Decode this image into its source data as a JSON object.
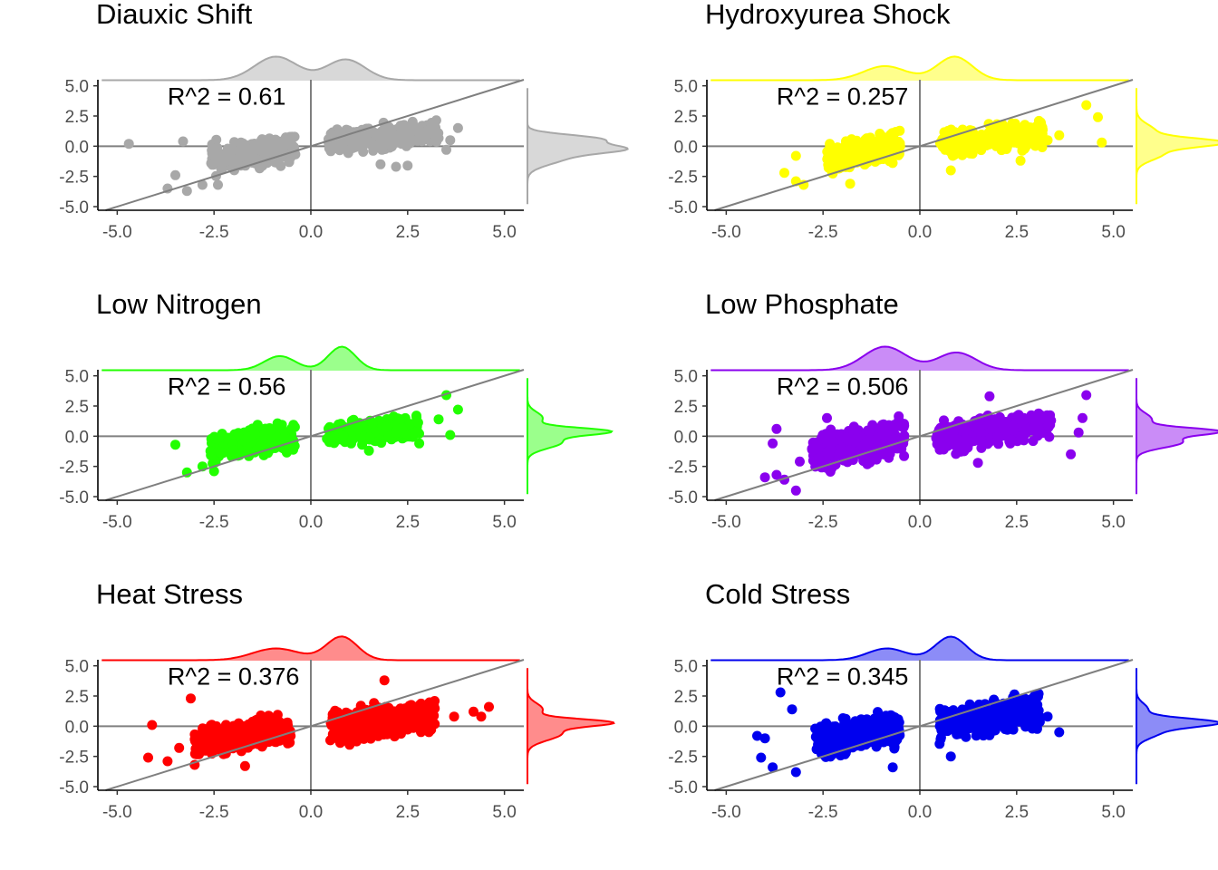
{
  "chart_data": [
    {
      "type": "scatter",
      "title": "Diauxic Shift",
      "color": "#a8a8a8",
      "annotation": "R^2 = 0.61",
      "xlim": [
        -5.5,
        5.5
      ],
      "ylim": [
        -5.3,
        5.5
      ],
      "x_ticks": [
        "-5.0",
        "-2.5",
        "0.0",
        "2.5",
        "5.0"
      ],
      "y_ticks": [
        "5.0",
        "2.5",
        "0.0",
        "-2.5",
        "-5.0"
      ],
      "reference_line_slope": 1,
      "points": {
        "neg_x": [
          -2.6,
          -0.4
        ],
        "neg_y": [
          -1.8,
          0.6
        ],
        "pos_x": [
          0.4,
          3.3
        ],
        "pos_y": [
          -0.3,
          1.8
        ],
        "n_neg": 220,
        "n_pos": 260,
        "seed": 11
      },
      "outliers": [
        [
          -4.7,
          0.2
        ],
        [
          -3.3,
          0.4
        ],
        [
          -3.7,
          -3.5
        ],
        [
          -3.2,
          -3.7
        ],
        [
          -3.5,
          -2.4
        ],
        [
          -2.8,
          -3.2
        ],
        [
          -2.4,
          -3.2
        ],
        [
          3.8,
          1.5
        ],
        [
          3.6,
          0.5
        ],
        [
          3.5,
          -0.3
        ],
        [
          2.2,
          -1.7
        ],
        [
          2.5,
          -1.6
        ],
        [
          1.8,
          -1.5
        ]
      ],
      "x_density_peaks": [
        [
          -0.9,
          0.55,
          1.0
        ],
        [
          0.9,
          0.5,
          0.88
        ]
      ],
      "y_density_peaks": [
        [
          0.6,
          0.35,
          0.9
        ],
        [
          -0.2,
          0.35,
          1.0
        ],
        [
          -0.9,
          0.6,
          0.5
        ]
      ]
    },
    {
      "type": "scatter",
      "title": "Hydroxyurea Shock",
      "color": "#ffff00",
      "annotation": "R^2 = 0.257",
      "xlim": [
        -5.5,
        5.5
      ],
      "ylim": [
        -5.3,
        5.5
      ],
      "x_ticks": [
        "-5.0",
        "-2.5",
        "0.0",
        "2.5",
        "5.0"
      ],
      "y_ticks": [
        "5.0",
        "2.5",
        "0.0",
        "-2.5",
        "-5.0"
      ],
      "reference_line_slope": 1,
      "points": {
        "neg_x": [
          -2.4,
          -0.5
        ],
        "neg_y": [
          -1.8,
          0.8
        ],
        "pos_x": [
          0.5,
          3.2
        ],
        "pos_y": [
          -0.5,
          1.8
        ],
        "n_neg": 220,
        "n_pos": 260,
        "seed": 23
      },
      "outliers": [
        [
          -3.2,
          -0.8
        ],
        [
          -3.5,
          -2.2
        ],
        [
          -3.2,
          -2.9
        ],
        [
          -3.0,
          -3.2
        ],
        [
          -1.8,
          -3.1
        ],
        [
          4.3,
          3.4
        ],
        [
          4.6,
          2.4
        ],
        [
          4.7,
          0.3
        ],
        [
          3.6,
          0.9
        ],
        [
          3.3,
          0.5
        ],
        [
          0.8,
          -2.0
        ],
        [
          2.6,
          -1.2
        ]
      ],
      "x_density_peaks": [
        [
          -0.9,
          0.55,
          0.6
        ],
        [
          0.9,
          0.45,
          1.0
        ]
      ],
      "y_density_peaks": [
        [
          0.3,
          0.35,
          1.0
        ],
        [
          -0.6,
          0.55,
          0.35
        ],
        [
          1.2,
          0.6,
          0.25
        ]
      ]
    },
    {
      "type": "scatter",
      "title": "Low Nitrogen",
      "color": "#22ff00",
      "annotation": "R^2 = 0.56",
      "xlim": [
        -5.5,
        5.5
      ],
      "ylim": [
        -5.3,
        5.5
      ],
      "x_ticks": [
        "-5.0",
        "-2.5",
        "0.0",
        "2.5",
        "5.0"
      ],
      "y_ticks": [
        "5.0",
        "2.5",
        "0.0",
        "-2.5",
        "-5.0"
      ],
      "reference_line_slope": 1,
      "points": {
        "neg_x": [
          -2.6,
          -0.4
        ],
        "neg_y": [
          -1.8,
          0.6
        ],
        "pos_x": [
          0.4,
          2.8
        ],
        "pos_y": [
          -0.6,
          1.5
        ],
        "n_neg": 220,
        "n_pos": 240,
        "seed": 37
      },
      "outliers": [
        [
          -3.5,
          -0.7
        ],
        [
          -3.2,
          -3.0
        ],
        [
          -2.8,
          -2.5
        ],
        [
          -2.5,
          -2.9
        ],
        [
          3.5,
          3.4
        ],
        [
          3.8,
          2.2
        ],
        [
          3.3,
          1.4
        ],
        [
          3.6,
          0.1
        ],
        [
          2.8,
          -0.6
        ],
        [
          1.5,
          -1.2
        ]
      ],
      "x_density_peaks": [
        [
          -0.8,
          0.4,
          0.6
        ],
        [
          0.8,
          0.35,
          1.0
        ]
      ],
      "y_density_peaks": [
        [
          0.4,
          0.3,
          1.0
        ],
        [
          -0.5,
          0.5,
          0.45
        ],
        [
          1.5,
          0.5,
          0.2
        ]
      ]
    },
    {
      "type": "scatter",
      "title": "Low Phosphate",
      "color": "#8a00ee",
      "annotation": "R^2 = 0.506",
      "xlim": [
        -5.5,
        5.5
      ],
      "ylim": [
        -5.3,
        5.5
      ],
      "x_ticks": [
        "-5.0",
        "-2.5",
        "0.0",
        "2.5",
        "5.0"
      ],
      "y_ticks": [
        "5.0",
        "2.5",
        "0.0",
        "-2.5",
        "-5.0"
      ],
      "reference_line_slope": 1,
      "points": {
        "neg_x": [
          -2.8,
          -0.4
        ],
        "neg_y": [
          -2.4,
          1.0
        ],
        "pos_x": [
          0.4,
          3.4
        ],
        "pos_y": [
          -0.8,
          1.8
        ],
        "n_neg": 300,
        "n_pos": 320,
        "seed": 53
      },
      "outliers": [
        [
          -4.0,
          -3.4
        ],
        [
          -3.7,
          -3.2
        ],
        [
          -3.2,
          -4.5
        ],
        [
          -3.5,
          -3.6
        ],
        [
          -3.8,
          -0.6
        ],
        [
          -3.7,
          0.6
        ],
        [
          -3.1,
          -2.1
        ],
        [
          -2.4,
          1.5
        ],
        [
          1.8,
          3.3
        ],
        [
          4.3,
          3.4
        ],
        [
          4.2,
          1.5
        ],
        [
          4.1,
          0.3
        ],
        [
          3.9,
          -1.5
        ],
        [
          1.5,
          -2.2
        ],
        [
          0.6,
          -1.0
        ]
      ],
      "x_density_peaks": [
        [
          -0.9,
          0.55,
          1.0
        ],
        [
          0.95,
          0.5,
          0.75
        ]
      ],
      "y_density_peaks": [
        [
          0.4,
          0.3,
          1.0
        ],
        [
          -0.5,
          0.45,
          0.6
        ],
        [
          1.4,
          0.5,
          0.2
        ]
      ]
    },
    {
      "type": "scatter",
      "title": "Heat Stress",
      "color": "#ff0000",
      "annotation": "R^2 = 0.376",
      "xlim": [
        -5.5,
        5.5
      ],
      "ylim": [
        -5.3,
        5.5
      ],
      "x_ticks": [
        "-5.0",
        "-2.5",
        "0.0",
        "2.5",
        "5.0"
      ],
      "y_ticks": [
        "5.0",
        "2.5",
        "0.0",
        "-2.5",
        "-5.0"
      ],
      "reference_line_slope": 1,
      "points": {
        "neg_x": [
          -3.0,
          -0.5
        ],
        "neg_y": [
          -2.0,
          0.5
        ],
        "pos_x": [
          0.5,
          3.2
        ],
        "pos_y": [
          -0.9,
          1.8
        ],
        "n_neg": 320,
        "n_pos": 340,
        "seed": 71
      },
      "outliers": [
        [
          -3.1,
          2.3
        ],
        [
          -4.2,
          -2.6
        ],
        [
          -3.7,
          -2.9
        ],
        [
          -4.1,
          0.1
        ],
        [
          -3.4,
          -1.8
        ],
        [
          -3.0,
          -3.2
        ],
        [
          -1.7,
          -3.3
        ],
        [
          4.4,
          0.8
        ],
        [
          4.6,
          1.6
        ],
        [
          4.2,
          1.2
        ],
        [
          3.7,
          0.8
        ],
        [
          1.9,
          3.8
        ],
        [
          0.9,
          -0.8
        ]
      ],
      "x_density_peaks": [
        [
          -0.9,
          0.6,
          0.5
        ],
        [
          0.8,
          0.4,
          1.0
        ]
      ],
      "y_density_peaks": [
        [
          0.3,
          0.3,
          1.0
        ],
        [
          -0.6,
          0.55,
          0.45
        ],
        [
          1.4,
          0.5,
          0.2
        ]
      ]
    },
    {
      "type": "scatter",
      "title": "Cold Stress",
      "color": "#0000ee",
      "annotation": "R^2 = 0.345",
      "xlim": [
        -5.5,
        5.5
      ],
      "ylim": [
        -5.3,
        5.5
      ],
      "x_ticks": [
        "-5.0",
        "-2.5",
        "0.0",
        "2.5",
        "5.0"
      ],
      "y_ticks": [
        "5.0",
        "2.5",
        "0.0",
        "-2.5",
        "-5.0"
      ],
      "reference_line_slope": 1,
      "points": {
        "neg_x": [
          -2.7,
          -0.5
        ],
        "neg_y": [
          -2.2,
          0.8
        ],
        "pos_x": [
          0.5,
          3.1
        ],
        "pos_y": [
          -0.8,
          2.0
        ],
        "n_neg": 300,
        "n_pos": 330,
        "seed": 89
      },
      "outliers": [
        [
          -3.6,
          2.8
        ],
        [
          -3.3,
          1.4
        ],
        [
          -4.0,
          -1.0
        ],
        [
          -4.2,
          -0.8
        ],
        [
          -4.1,
          -2.6
        ],
        [
          -3.8,
          -3.4
        ],
        [
          -3.2,
          -3.8
        ],
        [
          -2.7,
          -0.2
        ],
        [
          -0.7,
          -3.4
        ],
        [
          3.6,
          -0.5
        ],
        [
          3.3,
          0.8
        ],
        [
          2.7,
          2.3
        ],
        [
          0.8,
          -2.5
        ]
      ],
      "x_density_peaks": [
        [
          -0.85,
          0.5,
          0.5
        ],
        [
          0.8,
          0.4,
          1.0
        ]
      ],
      "y_density_peaks": [
        [
          0.3,
          0.35,
          1.0
        ],
        [
          -0.5,
          0.5,
          0.3
        ],
        [
          1.4,
          0.5,
          0.15
        ]
      ]
    }
  ]
}
